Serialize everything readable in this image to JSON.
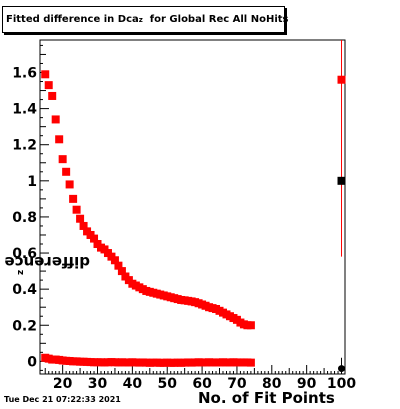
{
  "title": {
    "prefix": "Fitted difference in Dca",
    "sub": "z",
    "suffix": "for Global Rec All NoHits"
  },
  "footer": {
    "datestamp": "Tue Dec 21 07:22:33 2021"
  },
  "chart_data": {
    "type": "scatter",
    "xlabel": "No. of Fit Points",
    "ylabel_main": "difference in Dca",
    "ylabel_sub": "z",
    "xlim": [
      13.5,
      101
    ],
    "ylim": [
      -0.07,
      1.78
    ],
    "xticks": [
      20,
      30,
      40,
      50,
      60,
      70,
      80,
      90,
      100
    ],
    "yticks": [
      0,
      0.2,
      0.4,
      0.6,
      0.8,
      1,
      1.2,
      1.4,
      1.6
    ],
    "ytick_labels": [
      "0",
      "0.2",
      "0.4",
      "0.6",
      "0.8",
      "1",
      "1.2",
      "1.4",
      "1.6"
    ],
    "colors": {
      "sigma_series": "#ff0000",
      "mean_series": "#ff0000",
      "summary_marker": "#000000",
      "summary_error_bar": "#ff0000"
    },
    "series": [
      {
        "marker": "square",
        "x": [
          15,
          16,
          17,
          18,
          19,
          20,
          21,
          22,
          23,
          24,
          25,
          26,
          27,
          28,
          29,
          30,
          31,
          32,
          33,
          34,
          35,
          36,
          37,
          38,
          39,
          40,
          41,
          42,
          43,
          44,
          45,
          46,
          47,
          48,
          49,
          50,
          51,
          52,
          53,
          54,
          55,
          56,
          57,
          58,
          59,
          60,
          61,
          62,
          63,
          64,
          65,
          66,
          67,
          68,
          69,
          70,
          71,
          72,
          73,
          74
        ],
        "y": [
          1.59,
          1.53,
          1.47,
          1.34,
          1.23,
          1.12,
          1.05,
          0.98,
          0.9,
          0.84,
          0.79,
          0.75,
          0.72,
          0.7,
          0.68,
          0.65,
          0.63,
          0.62,
          0.6,
          0.58,
          0.56,
          0.53,
          0.5,
          0.47,
          0.45,
          0.43,
          0.42,
          0.41,
          0.4,
          0.39,
          0.385,
          0.38,
          0.375,
          0.37,
          0.365,
          0.36,
          0.355,
          0.35,
          0.345,
          0.34,
          0.338,
          0.335,
          0.332,
          0.328,
          0.322,
          0.315,
          0.308,
          0.3,
          0.295,
          0.29,
          0.28,
          0.27,
          0.26,
          0.25,
          0.24,
          0.23,
          0.215,
          0.205,
          0.2,
          0.2
        ]
      },
      {
        "marker": "square",
        "x": [
          15,
          16,
          17,
          18,
          19,
          20,
          21,
          22,
          23,
          24,
          25,
          26,
          27,
          28,
          29,
          30,
          31,
          32,
          33,
          34,
          35,
          36,
          37,
          38,
          39,
          40,
          41,
          42,
          43,
          44,
          45,
          46,
          47,
          48,
          49,
          50,
          51,
          52,
          53,
          54,
          55,
          56,
          57,
          58,
          59,
          60,
          61,
          62,
          63,
          64,
          65,
          66,
          67,
          68,
          69,
          70,
          71,
          72,
          73,
          74
        ],
        "y": [
          0.02,
          0.015,
          0.01,
          0.01,
          0.008,
          0.005,
          0.003,
          0.002,
          0.0,
          0.0,
          -0.002,
          -0.002,
          -0.003,
          -0.004,
          -0.005,
          -0.005,
          -0.005,
          -0.006,
          -0.005,
          -0.004,
          -0.005,
          -0.006,
          -0.005,
          -0.006,
          -0.006,
          -0.005,
          -0.006,
          -0.007,
          -0.006,
          -0.007,
          -0.008,
          -0.007,
          -0.007,
          -0.008,
          -0.008,
          -0.007,
          -0.008,
          -0.008,
          -0.007,
          -0.008,
          -0.007,
          -0.006,
          -0.007,
          -0.006,
          -0.005,
          -0.006,
          -0.006,
          -0.005,
          -0.006,
          -0.006,
          -0.006,
          -0.005,
          -0.006,
          -0.006,
          -0.005,
          -0.006,
          -0.006,
          -0.006,
          -0.006,
          -0.007
        ]
      }
    ],
    "summary": {
      "x": 100,
      "sigma_point": 1.56,
      "sigma_error_range": [
        0.58,
        1.78
      ],
      "black_point": 1.0,
      "mean_point": -0.04
    }
  }
}
